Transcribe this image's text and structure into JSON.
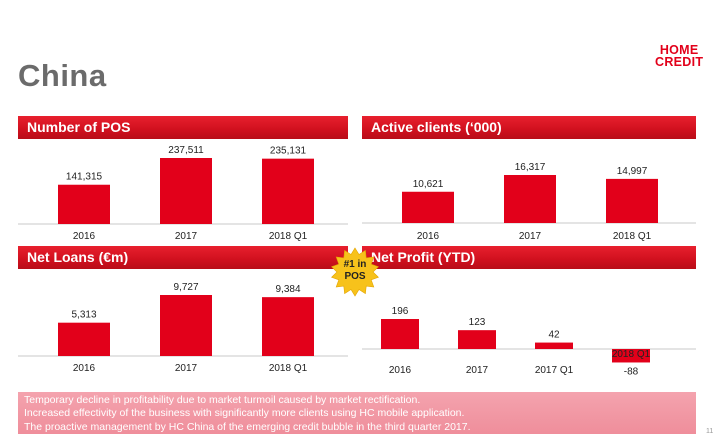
{
  "page": {
    "title": "China",
    "page_number": "11"
  },
  "logo": {
    "line1": "HOME",
    "line2": "CREDIT"
  },
  "badge": {
    "line1": "#1 in",
    "line2": "POS"
  },
  "notes": [
    "Temporary decline in profitability due to market turmoil caused by market rectification.",
    "Increased effectivity of the business with significantly more clients using HC mobile application.",
    "The proactive management by HC China of the emerging credit bubble in the third quarter 2017."
  ],
  "colors": {
    "bar": "#e2001a",
    "header": "#d0101e",
    "notes_bg": "#f09aa6"
  },
  "chart_data": [
    {
      "type": "bar",
      "title": "Number of POS",
      "categories": [
        "2016",
        "2017",
        "2018 Q1"
      ],
      "values": [
        141315,
        237511,
        235131
      ],
      "value_labels": [
        "141,315",
        "237,511",
        "235,131"
      ]
    },
    {
      "type": "bar",
      "title": "Active clients (‘000)",
      "categories": [
        "2016",
        "2017",
        "2018 Q1"
      ],
      "values": [
        10621,
        16317,
        14997
      ],
      "value_labels": [
        "10,621",
        "16,317",
        "14,997"
      ]
    },
    {
      "type": "bar",
      "title": "Net Loans (€m)",
      "categories": [
        "2016",
        "2017",
        "2018 Q1"
      ],
      "values": [
        5313,
        9727,
        9384
      ],
      "value_labels": [
        "5,313",
        "9,727",
        "9,384"
      ]
    },
    {
      "type": "bar",
      "title": "Net Profit (YTD)",
      "categories": [
        "2016",
        "2017",
        "2017 Q1",
        "2018 Q1"
      ],
      "values": [
        196,
        123,
        42,
        -88
      ],
      "value_labels": [
        "196",
        "123",
        "42",
        "-88"
      ]
    }
  ]
}
